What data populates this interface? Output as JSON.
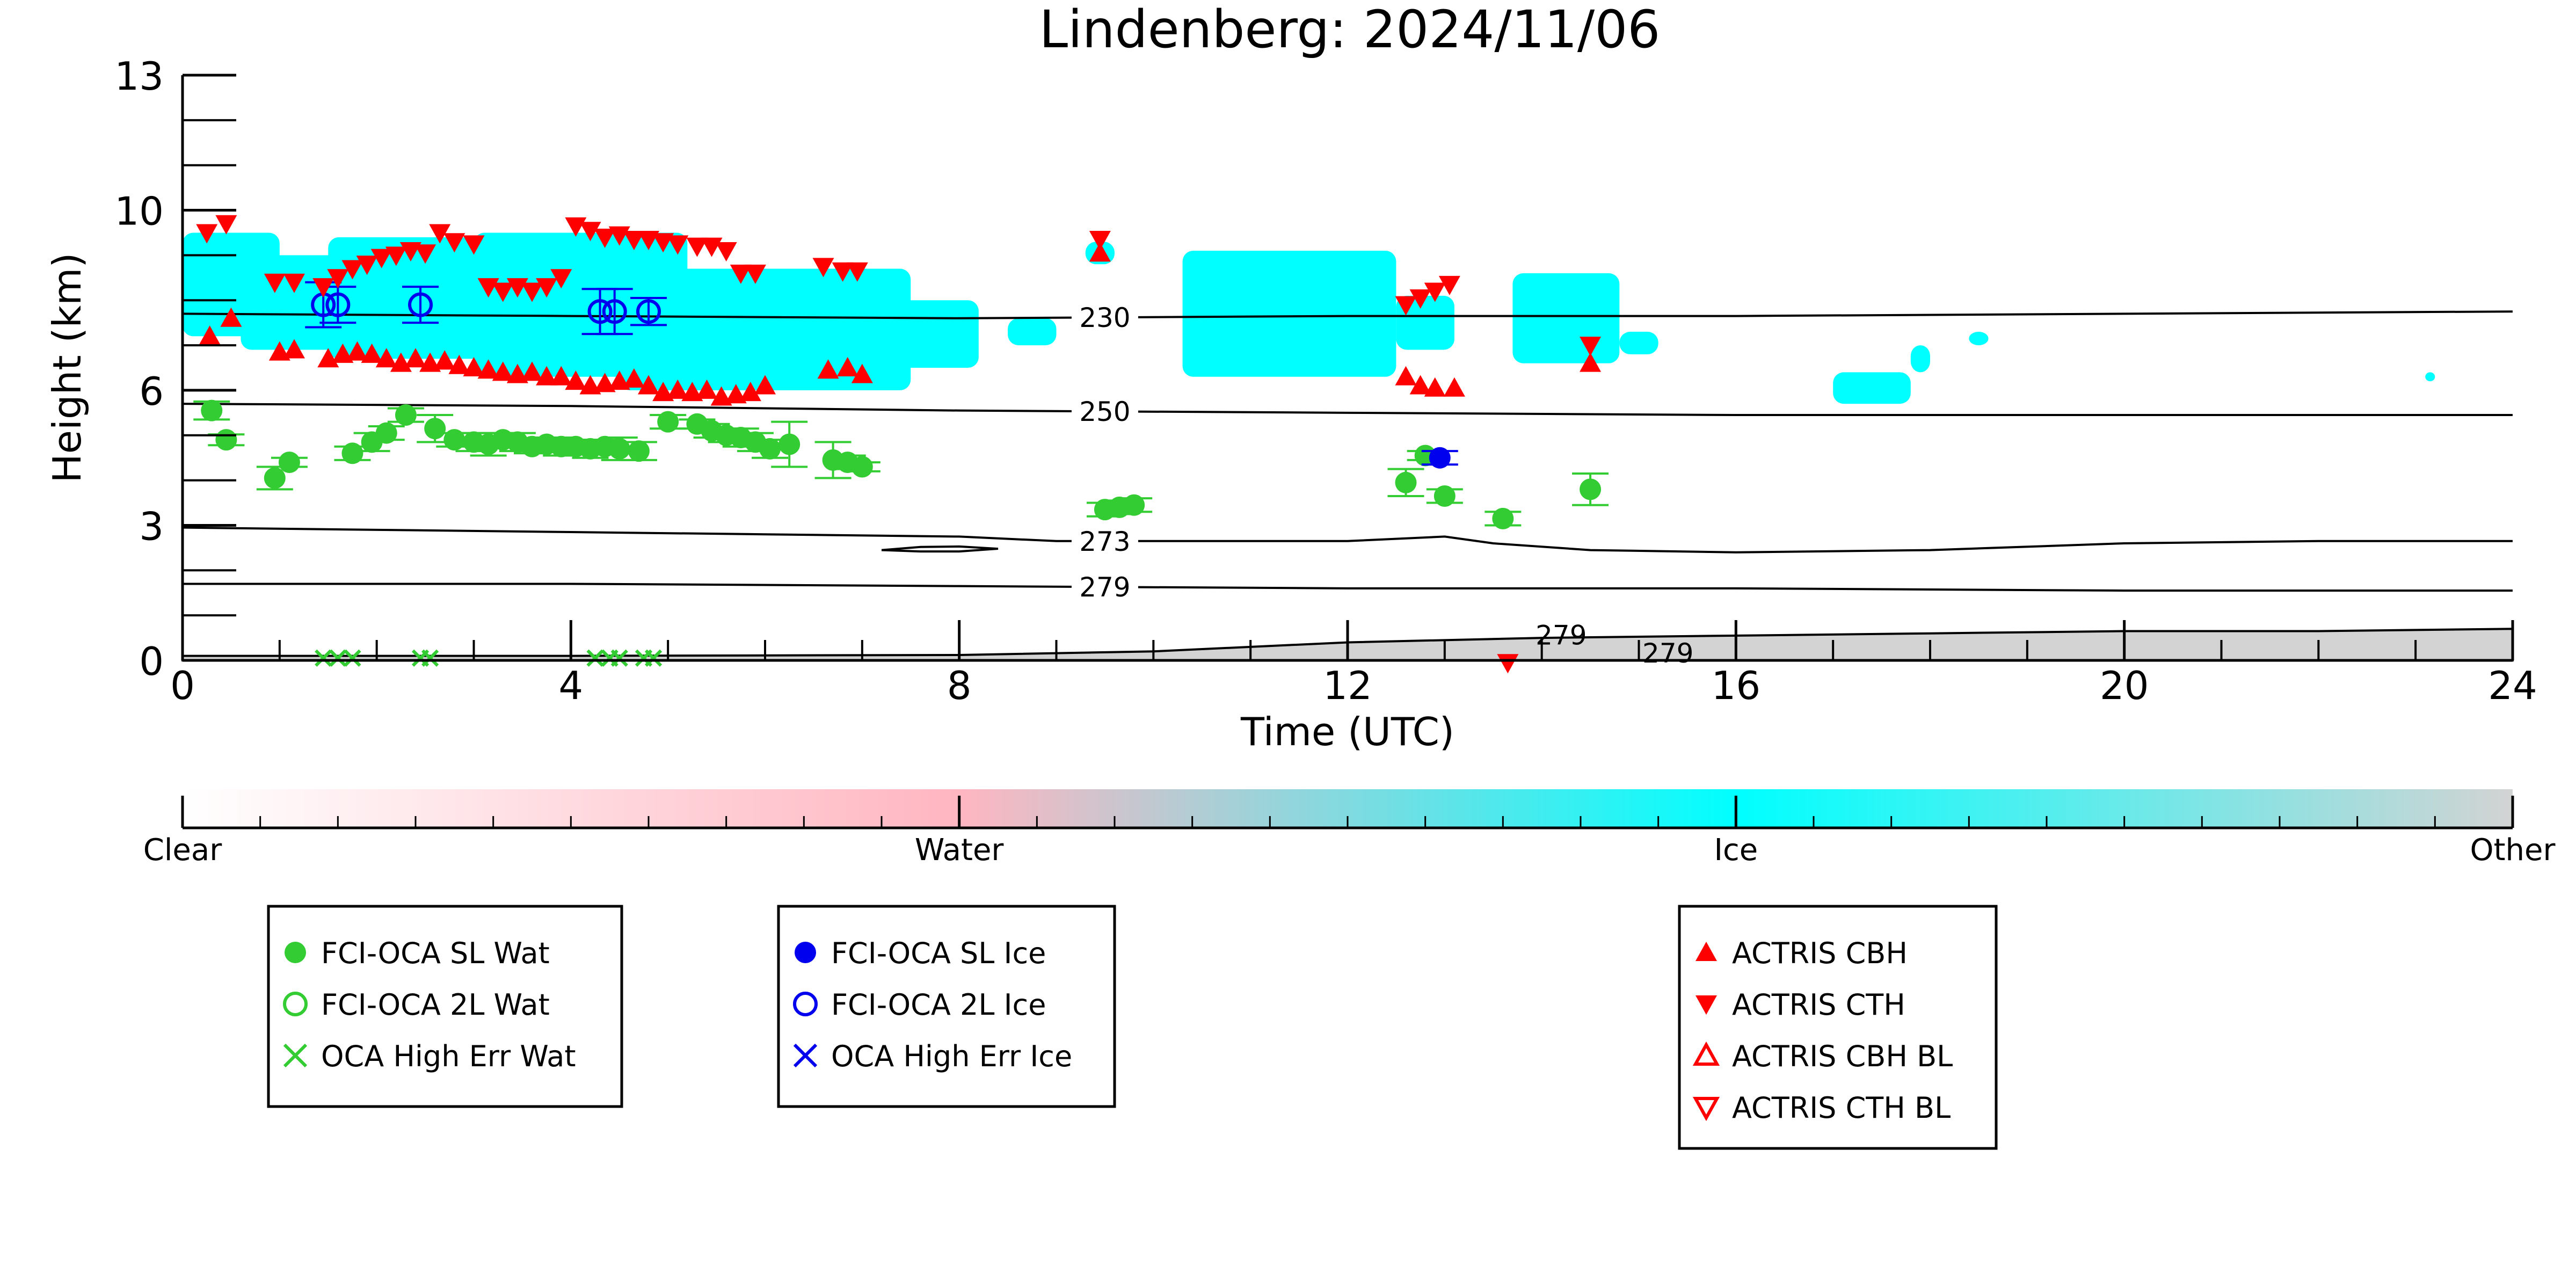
{
  "chart_data": {
    "type": "scatter",
    "title": "Lindenberg: 2024/11/06",
    "xlabel": "Time (UTC)",
    "ylabel": "Height (km)",
    "xlim": [
      0,
      24
    ],
    "ylim": [
      0,
      13
    ],
    "x_ticks": [
      0,
      4,
      8,
      12,
      16,
      20,
      24
    ],
    "y_ticks": [
      0,
      3,
      6,
      10,
      13
    ],
    "background_category": "Ice",
    "ice_regions": [
      {
        "x0": 0.0,
        "x1": 1.0,
        "y0": 7.2,
        "y1": 9.5
      },
      {
        "x0": 0.6,
        "x1": 2.2,
        "y0": 6.9,
        "y1": 9.0
      },
      {
        "x0": 1.5,
        "x1": 3.5,
        "y0": 6.7,
        "y1": 9.4
      },
      {
        "x0": 3.0,
        "x1": 5.2,
        "y0": 6.3,
        "y1": 9.5
      },
      {
        "x0": 4.5,
        "x1": 7.5,
        "y0": 6.0,
        "y1": 8.7
      },
      {
        "x0": 7.2,
        "x1": 8.2,
        "y0": 6.5,
        "y1": 8.0
      },
      {
        "x0": 8.5,
        "x1": 9.0,
        "y0": 7.0,
        "y1": 7.6
      },
      {
        "x0": 9.3,
        "x1": 9.6,
        "y0": 8.8,
        "y1": 9.3
      },
      {
        "x0": 10.3,
        "x1": 12.5,
        "y0": 6.3,
        "y1": 9.1
      },
      {
        "x0": 12.5,
        "x1": 13.1,
        "y0": 6.9,
        "y1": 8.1
      },
      {
        "x0": 13.7,
        "x1": 14.8,
        "y0": 6.6,
        "y1": 8.6
      },
      {
        "x0": 14.8,
        "x1": 15.2,
        "y0": 6.8,
        "y1": 7.3
      },
      {
        "x0": 17.0,
        "x1": 17.8,
        "y0": 5.7,
        "y1": 6.4
      },
      {
        "x0": 17.8,
        "x1": 18.0,
        "y0": 6.4,
        "y1": 7.0
      },
      {
        "x0": 18.4,
        "x1": 18.6,
        "y0": 7.0,
        "y1": 7.3
      },
      {
        "x0": 23.1,
        "x1": 23.2,
        "y0": 6.2,
        "y1": 6.4
      }
    ],
    "contours": [
      {
        "label": "230",
        "label_x": 9.5,
        "points": [
          [
            0,
            7.7
          ],
          [
            4,
            7.65
          ],
          [
            8,
            7.6
          ],
          [
            12,
            7.65
          ],
          [
            16,
            7.65
          ],
          [
            20,
            7.7
          ],
          [
            24,
            7.75
          ]
        ]
      },
      {
        "label": "250",
        "label_x": 9.5,
        "points": [
          [
            0,
            5.7
          ],
          [
            4,
            5.65
          ],
          [
            8,
            5.55
          ],
          [
            12,
            5.5
          ],
          [
            16,
            5.45
          ],
          [
            20,
            5.45
          ],
          [
            24,
            5.45
          ]
        ]
      },
      {
        "label": "273",
        "label_x": 9.5,
        "points": [
          [
            0,
            2.95
          ],
          [
            2,
            2.9
          ],
          [
            4,
            2.85
          ],
          [
            6,
            2.8
          ],
          [
            8,
            2.75
          ],
          [
            9,
            2.65
          ],
          [
            10,
            2.65
          ],
          [
            12,
            2.65
          ],
          [
            13,
            2.75
          ],
          [
            13.5,
            2.6
          ],
          [
            14.5,
            2.45
          ],
          [
            16,
            2.4
          ],
          [
            18,
            2.45
          ],
          [
            20,
            2.6
          ],
          [
            22,
            2.65
          ],
          [
            24,
            2.65
          ]
        ]
      },
      {
        "label": "279",
        "label_x": 9.5,
        "points": [
          [
            0,
            1.7
          ],
          [
            4,
            1.7
          ],
          [
            8,
            1.65
          ],
          [
            12,
            1.6
          ],
          [
            16,
            1.6
          ],
          [
            20,
            1.55
          ],
          [
            24,
            1.55
          ]
        ]
      }
    ],
    "small_contour": [
      [
        7.2,
        2.45
      ],
      [
        7.6,
        2.52
      ],
      [
        8.0,
        2.53
      ],
      [
        8.4,
        2.48
      ],
      [
        8.0,
        2.42
      ],
      [
        7.6,
        2.42
      ],
      [
        7.2,
        2.45
      ]
    ],
    "surface_contour_labels": [
      "279",
      "279"
    ],
    "other_region_top": [
      [
        0,
        0.1
      ],
      [
        4,
        0.1
      ],
      [
        8,
        0.12
      ],
      [
        10,
        0.2
      ],
      [
        12,
        0.4
      ],
      [
        14,
        0.5
      ],
      [
        16,
        0.55
      ],
      [
        18,
        0.6
      ],
      [
        20,
        0.65
      ],
      [
        22,
        0.65
      ],
      [
        24,
        0.7
      ]
    ],
    "series": [
      {
        "name": "FCI-OCA SL Wat",
        "marker": "filled-circle",
        "color": "#33cc33",
        "points": [
          [
            0.3,
            5.55,
            0.2
          ],
          [
            0.45,
            4.9,
            0.12
          ],
          [
            0.95,
            4.05,
            0.25
          ],
          [
            1.1,
            4.4,
            0.1
          ],
          [
            1.75,
            4.6,
            0.15
          ],
          [
            1.95,
            4.85,
            0.2
          ],
          [
            2.1,
            5.05,
            0.15
          ],
          [
            2.3,
            5.45,
            0.15
          ],
          [
            2.6,
            5.15,
            0.3
          ],
          [
            2.8,
            4.9,
            0.15
          ],
          [
            3.0,
            4.85,
            0.2
          ],
          [
            3.15,
            4.8,
            0.25
          ],
          [
            3.3,
            4.9,
            0.15
          ],
          [
            3.45,
            4.85,
            0.2
          ],
          [
            3.6,
            4.75,
            0.15
          ],
          [
            3.75,
            4.8,
            0.15
          ],
          [
            3.9,
            4.75,
            0.2
          ],
          [
            4.05,
            4.75,
            0.15
          ],
          [
            4.2,
            4.7,
            0.2
          ],
          [
            4.35,
            4.75,
            0.15
          ],
          [
            4.5,
            4.7,
            0.25
          ],
          [
            4.7,
            4.65,
            0.2
          ],
          [
            5.0,
            5.3,
            0.15
          ],
          [
            5.3,
            5.25,
            0.1
          ],
          [
            5.45,
            5.1,
            0.15
          ],
          [
            5.6,
            5.0,
            0.15
          ],
          [
            5.75,
            4.95,
            0.2
          ],
          [
            5.9,
            4.85,
            0.2
          ],
          [
            6.05,
            4.7,
            0.2
          ],
          [
            6.25,
            4.8,
            0.5
          ],
          [
            6.7,
            4.45,
            0.4
          ],
          [
            6.85,
            4.4,
            0.15
          ],
          [
            7.0,
            4.3,
            0.1
          ],
          [
            9.5,
            3.35,
            0.15
          ],
          [
            9.65,
            3.4,
            0.15
          ],
          [
            9.8,
            3.45,
            0.15
          ],
          [
            12.6,
            3.95,
            0.3
          ],
          [
            12.8,
            4.55,
            0.1
          ],
          [
            13.0,
            3.65,
            0.15
          ],
          [
            13.6,
            3.15,
            0.15
          ],
          [
            14.5,
            3.8,
            0.35
          ]
        ]
      },
      {
        "name": "FCI-OCA 2L Wat",
        "marker": "open-circle",
        "color": "#33cc33",
        "points": []
      },
      {
        "name": "OCA High Err Wat",
        "marker": "x",
        "color": "#33cc33",
        "points": [
          [
            1.45,
            0.05
          ],
          [
            1.6,
            0.05
          ],
          [
            1.75,
            0.05
          ],
          [
            2.45,
            0.05
          ],
          [
            2.55,
            0.05
          ],
          [
            4.25,
            0.05
          ],
          [
            4.4,
            0.05
          ],
          [
            4.5,
            0.05
          ],
          [
            4.75,
            0.05
          ],
          [
            4.85,
            0.05
          ]
        ]
      },
      {
        "name": "FCI-OCA SL Ice",
        "marker": "filled-circle",
        "color": "#0000ee",
        "points": [
          [
            12.95,
            4.5,
            0.15
          ]
        ]
      },
      {
        "name": "FCI-OCA 2L Ice",
        "marker": "open-circle",
        "color": "#0000ee",
        "points": [
          [
            1.45,
            7.9,
            0.5
          ],
          [
            1.6,
            7.9,
            0.4
          ],
          [
            2.45,
            7.9,
            0.4
          ],
          [
            4.3,
            7.75,
            0.5
          ],
          [
            4.45,
            7.75,
            0.5
          ],
          [
            4.8,
            7.75,
            0.3
          ]
        ]
      },
      {
        "name": "OCA High Err Ice",
        "marker": "x",
        "color": "#0000ee",
        "points": []
      },
      {
        "name": "ACTRIS CBH",
        "marker": "triangle-up",
        "color": "#ff0000",
        "points": [
          [
            0.28,
            7.2
          ],
          [
            0.5,
            7.6
          ],
          [
            1.0,
            6.85
          ],
          [
            1.15,
            6.9
          ],
          [
            1.5,
            6.7
          ],
          [
            1.65,
            6.8
          ],
          [
            1.8,
            6.85
          ],
          [
            1.95,
            6.8
          ],
          [
            2.1,
            6.7
          ],
          [
            2.25,
            6.6
          ],
          [
            2.4,
            6.7
          ],
          [
            2.55,
            6.6
          ],
          [
            2.7,
            6.65
          ],
          [
            2.85,
            6.55
          ],
          [
            3.0,
            6.5
          ],
          [
            3.15,
            6.45
          ],
          [
            3.3,
            6.4
          ],
          [
            3.45,
            6.35
          ],
          [
            3.6,
            6.4
          ],
          [
            3.75,
            6.3
          ],
          [
            3.9,
            6.3
          ],
          [
            4.05,
            6.2
          ],
          [
            4.2,
            6.1
          ],
          [
            4.35,
            6.15
          ],
          [
            4.5,
            6.2
          ],
          [
            4.65,
            6.25
          ],
          [
            4.8,
            6.1
          ],
          [
            4.95,
            5.95
          ],
          [
            5.1,
            6.0
          ],
          [
            5.25,
            5.95
          ],
          [
            5.4,
            6.0
          ],
          [
            5.55,
            5.85
          ],
          [
            5.7,
            5.9
          ],
          [
            5.85,
            5.95
          ],
          [
            6.0,
            6.1
          ],
          [
            6.65,
            6.45
          ],
          [
            6.85,
            6.5
          ],
          [
            7.0,
            6.35
          ],
          [
            9.45,
            9.05
          ],
          [
            12.6,
            6.3
          ],
          [
            12.75,
            6.1
          ],
          [
            12.9,
            6.05
          ],
          [
            13.1,
            6.05
          ],
          [
            14.5,
            6.6
          ]
        ]
      },
      {
        "name": "ACTRIS CTH",
        "marker": "triangle-down",
        "color": "#ff0000",
        "points": [
          [
            0.25,
            9.5
          ],
          [
            0.45,
            9.7
          ],
          [
            0.95,
            8.4
          ],
          [
            1.15,
            8.4
          ],
          [
            1.45,
            8.3
          ],
          [
            1.6,
            8.5
          ],
          [
            1.75,
            8.7
          ],
          [
            1.9,
            8.8
          ],
          [
            2.05,
            8.95
          ],
          [
            2.2,
            9.0
          ],
          [
            2.35,
            9.1
          ],
          [
            2.5,
            9.05
          ],
          [
            2.65,
            9.5
          ],
          [
            2.8,
            9.3
          ],
          [
            3.0,
            9.25
          ],
          [
            3.15,
            8.3
          ],
          [
            3.3,
            8.2
          ],
          [
            3.45,
            8.3
          ],
          [
            3.6,
            8.2
          ],
          [
            3.75,
            8.3
          ],
          [
            3.9,
            8.5
          ],
          [
            4.05,
            9.65
          ],
          [
            4.2,
            9.55
          ],
          [
            4.35,
            9.4
          ],
          [
            4.5,
            9.45
          ],
          [
            4.65,
            9.35
          ],
          [
            4.8,
            9.35
          ],
          [
            4.95,
            9.3
          ],
          [
            5.1,
            9.25
          ],
          [
            5.3,
            9.2
          ],
          [
            5.45,
            9.2
          ],
          [
            5.6,
            9.1
          ],
          [
            5.75,
            8.6
          ],
          [
            5.9,
            8.6
          ],
          [
            6.6,
            8.75
          ],
          [
            6.8,
            8.65
          ],
          [
            6.95,
            8.65
          ],
          [
            9.45,
            9.35
          ],
          [
            12.6,
            7.9
          ],
          [
            12.75,
            8.05
          ],
          [
            12.9,
            8.2
          ],
          [
            13.05,
            8.35
          ],
          [
            14.5,
            7.0
          ],
          [
            13.65,
            -0.05
          ]
        ]
      },
      {
        "name": "ACTRIS CBH BL",
        "marker": "open-triangle-up",
        "color": "#ff0000",
        "points": []
      },
      {
        "name": "ACTRIS CTH BL",
        "marker": "open-triangle-down",
        "color": "#ff0000",
        "points": []
      }
    ],
    "colorbar": {
      "labels": [
        "Clear",
        "Water",
        "Ice",
        "Other"
      ],
      "colors": [
        "#ffffff",
        "#ffb6c1",
        "#00ffff",
        "#d3d3d3"
      ],
      "minor_tick_count": 30
    },
    "legend_placement": "bottom",
    "legend_groups": [
      [
        "FCI-OCA SL Wat",
        "FCI-OCA 2L Wat",
        "OCA High Err Wat"
      ],
      [
        "FCI-OCA SL Ice",
        "FCI-OCA 2L Ice",
        "OCA High Err Ice"
      ],
      [
        "ACTRIS CBH",
        "ACTRIS CTH",
        "ACTRIS CBH BL",
        "ACTRIS CTH BL"
      ]
    ]
  }
}
